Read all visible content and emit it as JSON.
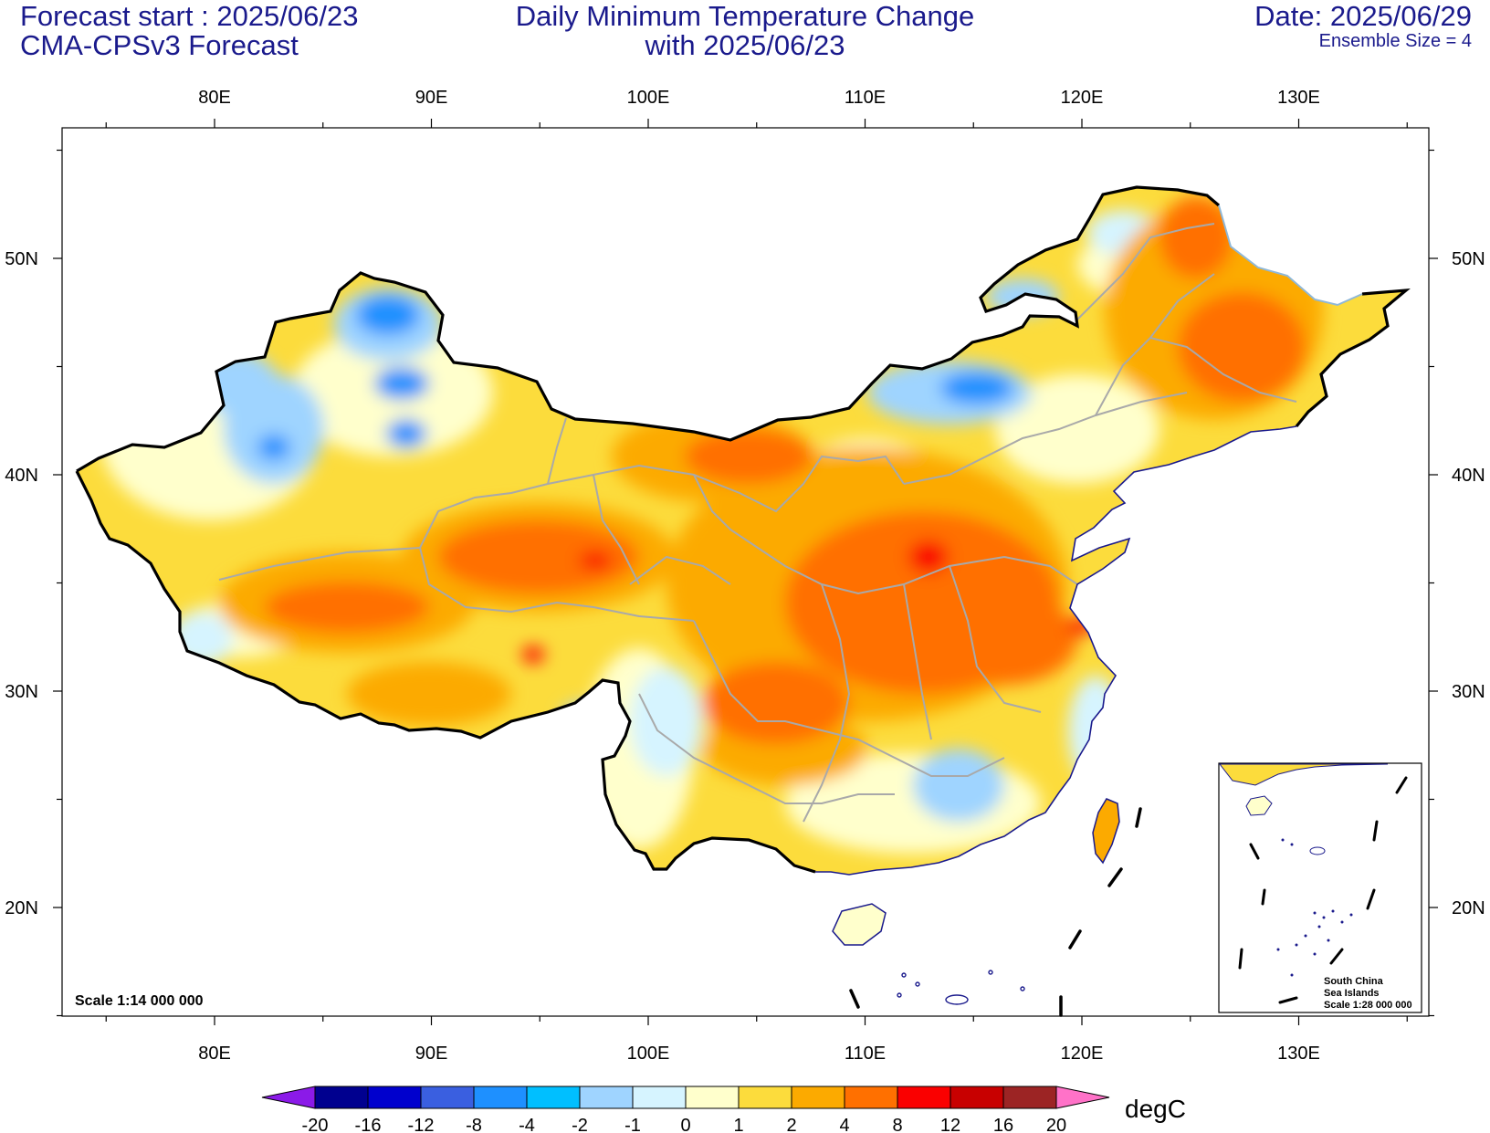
{
  "header": {
    "forecast_start": "Forecast start : 2025/06/23",
    "model": "CMA-CPSv3 Forecast",
    "title_line1": "Daily Minimum Temperature Change",
    "title_line2": "with 2025/06/23",
    "date": "Date: 2025/06/29",
    "ensemble": "Ensemble Size = 4"
  },
  "axes": {
    "lon_labels": [
      "80E",
      "90E",
      "100E",
      "110E",
      "120E",
      "130E"
    ],
    "lat_labels": [
      "50N",
      "40N",
      "30N",
      "20N"
    ],
    "lon_range": [
      73,
      136
    ],
    "lat_range": [
      15,
      56
    ]
  },
  "map": {
    "scale_text": "Scale 1:14 000 000",
    "inset_lines": [
      "South China",
      "Sea Islands",
      "Scale 1:28 000 000"
    ]
  },
  "colorbar": {
    "unit": "degC",
    "ticks": [
      "-20",
      "-16",
      "-12",
      "-8",
      "-4",
      "-2",
      "-1",
      "0",
      "1",
      "2",
      "4",
      "8",
      "12",
      "16",
      "20"
    ],
    "colors": [
      "#00008f",
      "#0000cd",
      "#3a5fe0",
      "#1e90ff",
      "#00bfff",
      "#9fd4ff",
      "#d6f4ff",
      "#ffffcc",
      "#fcdc3c",
      "#fcaa00",
      "#ff7000",
      "#fa0000",
      "#c80000",
      "#9c2424"
    ],
    "low_arrow_color": "#8b1ae8",
    "high_arrow_color": "#ff72c8"
  }
}
